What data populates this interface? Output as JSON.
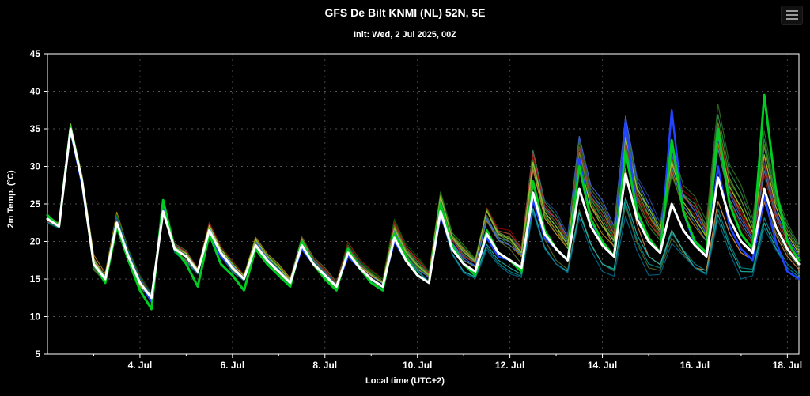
{
  "page": {
    "background": "#000000",
    "text_color": "#ffffff"
  },
  "header": {
    "title": "GFS De Bilt KNMI (NL) 52N, 5E",
    "subtitle": "Init: Wed, 2 Jul 2025, 00Z",
    "menu_icon": "hamburger-icon"
  },
  "chart_data": {
    "type": "line",
    "title": "GFS De Bilt KNMI (NL) 52N, 5E",
    "subtitle": "Init: Wed, 2 Jul 2025, 00Z",
    "xlabel": "Local time (UTC+2)",
    "ylabel": "2m Temp. (°C)",
    "ylim": [
      5,
      45
    ],
    "ytick_step": 5,
    "grid": "dotted",
    "legend": "none",
    "x_range": [
      0,
      16.25
    ],
    "x_step_days": 0.25,
    "x_start_label": "2 Jul 2025 00h local",
    "xticks": [
      {
        "t": 2,
        "label": "4. Jul"
      },
      {
        "t": 4,
        "label": "6. Jul"
      },
      {
        "t": 6,
        "label": "8. Jul"
      },
      {
        "t": 8,
        "label": "10. Jul"
      },
      {
        "t": 10,
        "label": "12. Jul"
      },
      {
        "t": 12,
        "label": "14. Jul"
      },
      {
        "t": 14,
        "label": "16. Jul"
      },
      {
        "t": 16,
        "label": "18. Jul"
      }
    ],
    "colors": {
      "frame": "#ffffff",
      "hgrid": "#555555",
      "vgrid": "#444444",
      "tick_text": "#ffffff"
    },
    "series": {
      "mean": {
        "name": "ensemble-mean-white",
        "color": "#ffffff",
        "width": 3,
        "values": [
          23,
          22,
          35,
          28,
          17,
          15,
          22.5,
          18,
          14.5,
          12.5,
          24,
          19,
          18,
          16,
          21.5,
          18.5,
          16.5,
          15,
          19.5,
          17.5,
          16,
          14.5,
          19.5,
          17,
          15.5,
          14,
          18.5,
          16.5,
          15,
          14,
          20.5,
          17.5,
          15.5,
          14.5,
          24,
          19,
          17,
          16,
          21,
          18.5,
          17.5,
          16.5,
          26.5,
          21,
          19,
          17.5,
          27,
          22,
          19.5,
          18,
          29,
          23,
          20,
          18.5,
          25,
          21.5,
          19.5,
          18,
          28.5,
          23,
          20,
          18.5,
          27,
          22,
          19,
          17
        ]
      },
      "green": {
        "name": "highlighted-member-green",
        "color": "#00cc22",
        "width": 3,
        "values": [
          23.5,
          22,
          35.2,
          28,
          17,
          14.5,
          22,
          17.5,
          13.5,
          11,
          25.5,
          19,
          17,
          14,
          21,
          17,
          15.5,
          13.5,
          19,
          17,
          15.5,
          14,
          20,
          17,
          15,
          13.5,
          19,
          16.5,
          14.5,
          13.5,
          21,
          18,
          15.5,
          14.5,
          25,
          19.5,
          17,
          15.5,
          21.5,
          18.5,
          17.5,
          16,
          28,
          21.5,
          19,
          17.5,
          30,
          23,
          20,
          18,
          32,
          24,
          20.5,
          18.5,
          33.5,
          24,
          20,
          18.5,
          35,
          25,
          21,
          19,
          39.5,
          27,
          20,
          17.5
        ]
      },
      "blue": {
        "name": "highlighted-member-blue",
        "color": "#2244ff",
        "width": 2.5,
        "values": [
          23,
          22,
          34.8,
          27.5,
          17,
          15,
          22,
          18,
          14.5,
          12,
          24.5,
          19,
          18,
          16,
          21,
          18,
          16.5,
          15,
          19.5,
          17.5,
          16,
          14.5,
          19,
          17,
          15.5,
          14,
          18,
          16.5,
          15,
          14,
          20,
          17.5,
          15.5,
          14.5,
          23.5,
          19,
          17,
          16,
          20.5,
          18,
          17.5,
          16.5,
          25.5,
          20.5,
          19,
          17.5,
          31,
          23,
          19.5,
          18,
          36,
          24,
          20,
          18.5,
          37.5,
          24,
          19.5,
          18,
          30,
          22,
          19,
          17.5,
          26,
          20,
          16,
          15
        ]
      }
    },
    "deviation_weights": [
      1.0,
      0.7,
      1.4,
      1.0
    ],
    "members": [
      {
        "color": "#8b2500",
        "deviations": [
          0.3,
          0.8,
          -0.5,
          0.6,
          0.9,
          0.4,
          0.8,
          1.2,
          2.0,
          1.5,
          3.0,
          3.5,
          3.0,
          2.5,
          4.0,
          2.0,
          0.5
        ]
      },
      {
        "color": "#b8860b",
        "deviations": [
          -0.4,
          1.2,
          0.8,
          -0.6,
          0.5,
          1.0,
          0.3,
          0.8,
          1.5,
          0.5,
          2.0,
          2.5,
          1.5,
          3.5,
          2.5,
          4.0,
          2.0
        ]
      },
      {
        "color": "#556b2f",
        "deviations": [
          0.6,
          -0.8,
          0.4,
          0.8,
          -0.5,
          0.6,
          1.0,
          0.4,
          1.0,
          2.0,
          1.5,
          -1.5,
          -2.5,
          -3.5,
          -3.0,
          -1.5,
          -0.5
        ]
      },
      {
        "color": "#006400",
        "deviations": [
          -0.6,
          0.5,
          1.0,
          0.3,
          0.7,
          -0.4,
          0.5,
          1.0,
          2.5,
          1.0,
          3.5,
          2.0,
          4.0,
          3.0,
          5.0,
          4.5,
          2.0
        ]
      },
      {
        "color": "#228b22",
        "deviations": [
          0.2,
          0.6,
          -0.6,
          0.5,
          0.3,
          0.8,
          -0.3,
          0.6,
          1.2,
          2.5,
          2.0,
          4.0,
          3.0,
          2.0,
          3.5,
          5.5,
          3.0
        ]
      },
      {
        "color": "#008b8b",
        "deviations": [
          -0.3,
          -0.6,
          0.5,
          -0.8,
          0.4,
          0.3,
          0.6,
          -0.5,
          0.5,
          -1.0,
          -1.5,
          -2.0,
          -2.5,
          -3.0,
          -2.5,
          -3.5,
          -2.0
        ]
      },
      {
        "color": "#4682b4",
        "deviations": [
          0.4,
          0.3,
          0.6,
          0.4,
          -0.6,
          0.5,
          0.2,
          0.5,
          1.5,
          0.5,
          2.5,
          3.0,
          5.0,
          4.0,
          3.0,
          2.5,
          1.0
        ]
      },
      {
        "color": "#27408b",
        "deviations": [
          -0.5,
          0.4,
          -0.4,
          0.6,
          0.5,
          -0.5,
          0.4,
          0.8,
          1.0,
          1.5,
          3.0,
          5.0,
          4.5,
          6.0,
          4.5,
          3.5,
          1.5
        ]
      },
      {
        "color": "#8b0000",
        "deviations": [
          0.5,
          -0.5,
          0.8,
          -0.4,
          0.6,
          0.4,
          -0.5,
          0.3,
          2.0,
          1.0,
          4.0,
          3.5,
          5.5,
          3.0,
          6.0,
          4.0,
          2.0
        ]
      },
      {
        "color": "#cd853f",
        "deviations": [
          -0.2,
          0.7,
          0.3,
          0.5,
          -0.3,
          0.6,
          0.5,
          -0.4,
          0.8,
          2.0,
          2.5,
          2.0,
          3.0,
          -2.0,
          -3.0,
          -1.5,
          -1.0
        ]
      },
      {
        "color": "#2e8b57",
        "deviations": [
          0.3,
          -0.4,
          0.5,
          0.3,
          0.6,
          -0.6,
          0.3,
          0.5,
          1.8,
          1.2,
          3.5,
          4.5,
          3.5,
          2.5,
          5.5,
          6.5,
          3.0
        ]
      },
      {
        "color": "#20b2aa",
        "deviations": [
          -0.4,
          0.5,
          -0.3,
          0.4,
          0.3,
          0.5,
          -0.4,
          0.6,
          0.6,
          -1.0,
          -1.0,
          -2.0,
          -2.5,
          -2.0,
          -3.0,
          -4.0,
          -2.5
        ]
      },
      {
        "color": "#4169e1",
        "deviations": [
          0.2,
          0.4,
          0.6,
          -0.5,
          0.4,
          0.3,
          0.5,
          0.4,
          1.0,
          0.8,
          2.0,
          4.0,
          6.0,
          5.0,
          4.5,
          3.0,
          1.5
        ]
      },
      {
        "color": "#6b8e23",
        "deviations": [
          0.5,
          0.6,
          -0.5,
          0.5,
          -0.4,
          0.4,
          0.3,
          0.7,
          1.5,
          1.8,
          3.0,
          2.5,
          4.5,
          3.5,
          5.0,
          5.5,
          2.5
        ]
      },
      {
        "color": "#a52a2a",
        "deviations": [
          -0.3,
          0.3,
          0.4,
          0.6,
          0.5,
          -0.3,
          0.6,
          0.5,
          2.2,
          1.0,
          3.5,
          4.0,
          4.0,
          2.5,
          5.0,
          3.5,
          1.0
        ]
      },
      {
        "color": "#2f6e1e",
        "deviations": [
          0.4,
          -0.6,
          0.3,
          -0.4,
          0.6,
          0.5,
          -0.2,
          0.8,
          1.0,
          2.2,
          2.5,
          3.5,
          5.5,
          4.5,
          6.5,
          7.5,
          3.5
        ]
      },
      {
        "color": "#00688b",
        "deviations": [
          -0.5,
          0.5,
          0.6,
          0.3,
          -0.5,
          0.4,
          0.4,
          -0.3,
          0.7,
          -1.2,
          -1.8,
          -2.0,
          -3.5,
          -4.5,
          -3.0,
          -5.0,
          -2.5
        ]
      },
      {
        "color": "#9acd32",
        "deviations": [
          0.3,
          0.5,
          -0.4,
          0.4,
          0.5,
          0.6,
          -0.4,
          0.5,
          1.3,
          1.6,
          2.8,
          3.0,
          2.5,
          4.5,
          3.5,
          4.5,
          2.0
        ]
      }
    ]
  }
}
